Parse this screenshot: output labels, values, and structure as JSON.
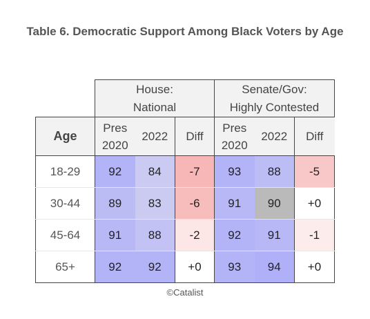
{
  "title": "Table 6. Democratic Support Among Black Voters by Age",
  "group_headers": [
    {
      "line1": "House:",
      "line2": "National"
    },
    {
      "line1": "Senate/Gov:",
      "line2": "Highly Contested"
    }
  ],
  "column_headers": {
    "age": "Age",
    "pres_line1": "Pres",
    "pres_line2": "2020",
    "y2022": "2022",
    "diff": "Diff"
  },
  "rows": [
    {
      "age": "18-29",
      "house_pres": "92",
      "house_2022": "84",
      "house_diff": "-7",
      "sen_pres": "93",
      "sen_2022": "88",
      "sen_diff": "-5"
    },
    {
      "age": "30-44",
      "house_pres": "89",
      "house_2022": "83",
      "house_diff": "-6",
      "sen_pres": "91",
      "sen_2022": "90",
      "sen_diff": "+0"
    },
    {
      "age": "45-64",
      "house_pres": "91",
      "house_2022": "88",
      "house_diff": "-2",
      "sen_pres": "92",
      "sen_2022": "91",
      "sen_diff": "-1"
    },
    {
      "age": "65+",
      "house_pres": "92",
      "house_2022": "92",
      "house_diff": "+0",
      "sen_pres": "93",
      "sen_2022": "94",
      "sen_diff": "+0"
    }
  ],
  "cell_colors": {
    "house_pres": [
      "#b3b3f7",
      "#bcbcf5",
      "#b8b8f6",
      "#b3b3f7"
    ],
    "house_2022": [
      "#cacaf2",
      "#cbcbf2",
      "#c2c2f4",
      "#b3b3f7"
    ],
    "house_diff": [
      "#f7b7b7",
      "#f7bcbc",
      "#fde6e6",
      "#ffffff"
    ],
    "sen_pres": [
      "#b3b3f7",
      "#b8b8f6",
      "#b3b3f7",
      "#b3b3f7"
    ],
    "sen_2022": [
      "#bdbdf6",
      "#bababa",
      "#b8b8f6",
      "#b0b0f8"
    ],
    "sen_diff": [
      "#f8c8c8",
      "#ffffff",
      "#fdecec",
      "#ffffff"
    ]
  },
  "footer": "©Catalist"
}
